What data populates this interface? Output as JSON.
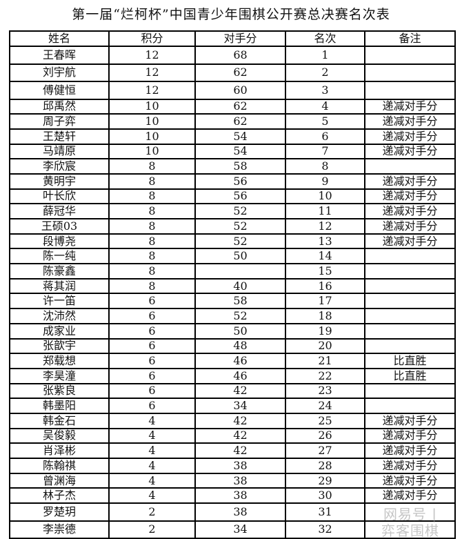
{
  "title": "第一届“烂柯杯”中国青少年围棋公开赛总决赛名次表",
  "headers": [
    "姓名",
    "积分",
    "对手分",
    "名次",
    "备注"
  ],
  "rows": [
    [
      "王春晖",
      "12",
      "68",
      "1",
      ""
    ],
    [
      "刘宇航",
      "12",
      "62",
      "2",
      ""
    ],
    [
      "傅健恒",
      "12",
      "60",
      "3",
      ""
    ],
    [
      "邱禹然",
      "10",
      "62",
      "4",
      "递减对手分"
    ],
    [
      "周子弈",
      "10",
      "62",
      "5",
      "递减对手分"
    ],
    [
      "王楚轩",
      "10",
      "54",
      "6",
      "递减对手分"
    ],
    [
      "马靖原",
      "10",
      "54",
      "7",
      "递减对手分"
    ],
    [
      "李欣宸",
      "8",
      "58",
      "8",
      ""
    ],
    [
      "黄明宇",
      "8",
      "56",
      "9",
      "递减对手分"
    ],
    [
      "叶长欣",
      "8",
      "56",
      "10",
      "递减对手分"
    ],
    [
      "薛冠华",
      "8",
      "52",
      "11",
      "递减对手分"
    ],
    [
      "王硕03",
      "8",
      "52",
      "12",
      "递减对手分"
    ],
    [
      "段博尧",
      "8",
      "52",
      "13",
      "递减对手分"
    ],
    [
      "陈一纯",
      "8",
      "50",
      "14",
      ""
    ],
    [
      "陈豪鑫",
      "8",
      "",
      "15",
      ""
    ],
    [
      "蒋其润",
      "8",
      "40",
      "16",
      ""
    ],
    [
      "许一笛",
      "6",
      "58",
      "17",
      ""
    ],
    [
      "沈沛然",
      "6",
      "52",
      "18",
      ""
    ],
    [
      "成家业",
      "6",
      "50",
      "19",
      ""
    ],
    [
      "张歆宇",
      "6",
      "48",
      "20",
      ""
    ],
    [
      "郑载想",
      "6",
      "46",
      "21",
      "比直胜"
    ],
    [
      "李昊潼",
      "6",
      "46",
      "22",
      "比直胜"
    ],
    [
      "张紫良",
      "6",
      "42",
      "23",
      ""
    ],
    [
      "韩墨阳",
      "6",
      "34",
      "24",
      ""
    ],
    [
      "韩金石",
      "4",
      "42",
      "25",
      "递减对手分"
    ],
    [
      "吴俊毅",
      "4",
      "42",
      "26",
      "递减对手分"
    ],
    [
      "肖泽彬",
      "4",
      "42",
      "27",
      "递减对手分"
    ],
    [
      "陈翰祺",
      "4",
      "38",
      "28",
      "递减对手分"
    ],
    [
      "曾渊海",
      "4",
      "38",
      "29",
      "递减对手分"
    ],
    [
      "林子杰",
      "4",
      "38",
      "30",
      "递减对手分"
    ],
    [
      "罗楚玥",
      "2",
      "38",
      "31",
      ""
    ],
    [
      "李崇德",
      "2",
      "34",
      "32",
      ""
    ]
  ],
  "watermark": "网易号 | 弈客围棋"
}
